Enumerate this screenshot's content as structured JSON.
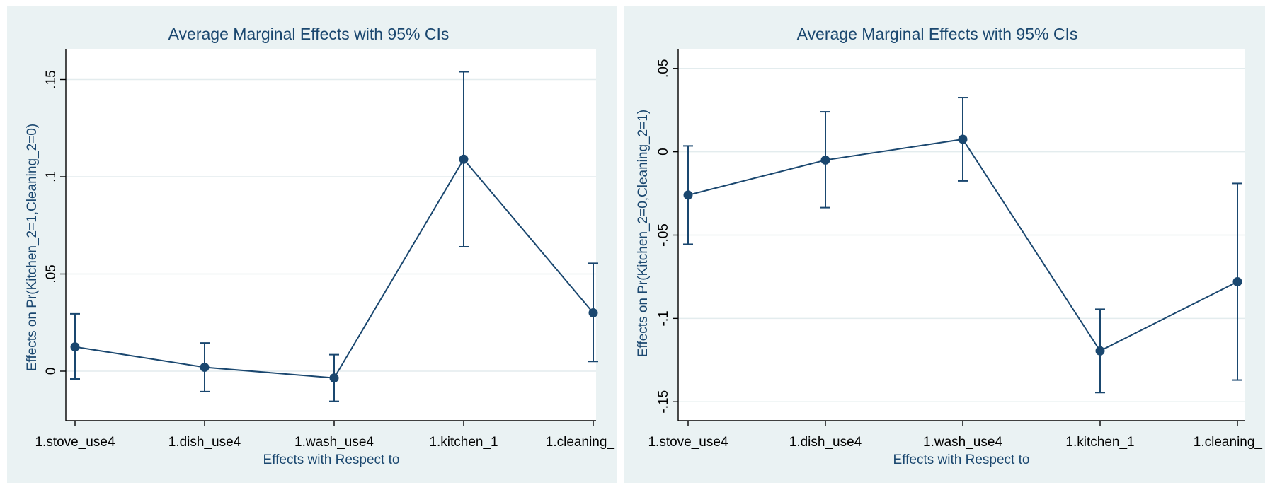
{
  "colors": {
    "background": "#ffffff",
    "panel_background": "#eaf2f3",
    "plot_background": "#ffffff",
    "grid": "#e3ecee",
    "series": "#1a476f",
    "text": "#1a476f",
    "axis": "#000000"
  },
  "chart_data": [
    {
      "type": "line",
      "title": "Average Marginal Effects with 95% CIs",
      "xlabel": "Effects with Respect to",
      "ylabel": "Effects on Pr(Kitchen_2=1,Cleaning_2=0)",
      "categories": [
        "1.stove_use4",
        "1.dish_use4",
        "1.wash_use4",
        "1.kitchen_1",
        "1.cleaning_"
      ],
      "series": [
        {
          "values": [
            0.0125,
            0.002,
            -0.0035,
            0.109,
            0.03
          ],
          "ci_lower": [
            -0.004,
            -0.0105,
            -0.0155,
            0.064,
            0.005
          ],
          "ci_upper": [
            0.0295,
            0.0145,
            0.0085,
            0.154,
            0.0555
          ]
        }
      ],
      "ylim": [
        -0.02,
        0.16
      ],
      "yticks": [
        0,
        0.05,
        0.1,
        0.15
      ],
      "ytick_labels": [
        "0",
        ".05",
        ".1",
        ".15"
      ],
      "grid": true,
      "error_bars": true
    },
    {
      "type": "line",
      "title": "Average Marginal Effects with 95% CIs",
      "xlabel": "Effects with Respect to",
      "ylabel": "Effects on Pr(Kitchen_2=0,Cleaning_2=1)",
      "categories": [
        "1.stove_use4",
        "1.dish_use4",
        "1.wash_use4",
        "1.kitchen_1",
        "1.cleaning_"
      ],
      "series": [
        {
          "values": [
            -0.026,
            -0.005,
            0.0075,
            -0.1195,
            -0.078
          ],
          "ci_lower": [
            -0.0555,
            -0.0335,
            -0.0175,
            -0.1445,
            -0.137
          ],
          "ci_upper": [
            0.0035,
            0.024,
            0.0325,
            -0.0945,
            -0.019
          ]
        }
      ],
      "ylim": [
        -0.155,
        0.055
      ],
      "yticks": [
        -0.15,
        -0.1,
        -0.05,
        0,
        0.05
      ],
      "ytick_labels": [
        "-.15",
        "-.1",
        "-.05",
        "0",
        ".05"
      ],
      "grid": true,
      "error_bars": true
    }
  ]
}
